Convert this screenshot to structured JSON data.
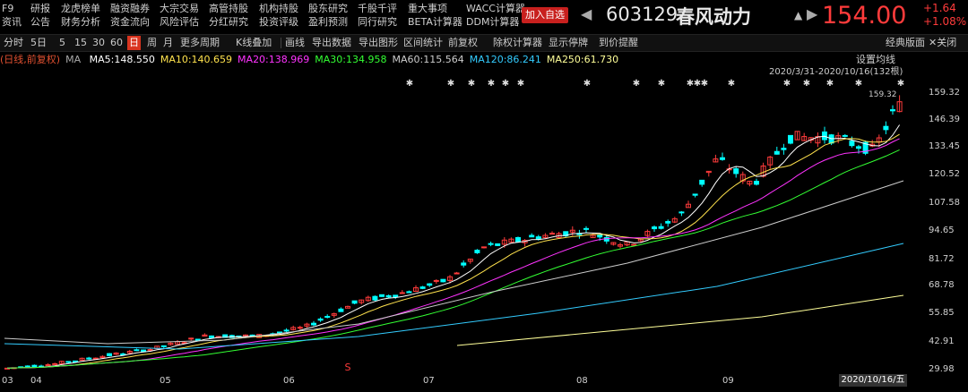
{
  "menu": {
    "col0": [
      "F9",
      "资讯"
    ],
    "col1": [
      "研报",
      "公告"
    ],
    "col2": [
      "龙虎榜单",
      "财务分析"
    ],
    "col3": [
      "融资融券",
      "资金流向"
    ],
    "col4": [
      "大宗交易",
      "风险评估"
    ],
    "col5": [
      "高管持股",
      "分红研究"
    ],
    "col6": [
      "机构持股",
      "投资评级"
    ],
    "col7": [
      "股东研究",
      "盈利预测"
    ],
    "col8": [
      "千股千评",
      "同行研究"
    ],
    "col9": [
      "重大事项",
      "BETA计算器"
    ],
    "col10": [
      "WACC计算器",
      "DDM计算器"
    ]
  },
  "header": {
    "add_button": "加入自选",
    "code": "603129",
    "name": "春风动力",
    "price": "154.00",
    "change": "+1.64",
    "change_pct": "+1.08%"
  },
  "toolbar": {
    "items": [
      "分时",
      "5日",
      "5",
      "15",
      "30",
      "60",
      "日",
      "周",
      "月",
      "更多周期",
      "K线叠加",
      "画线",
      "导出数据",
      "导出图形",
      "区间统计",
      "前复权",
      "除权计算器",
      "显示停牌",
      "到价提醒"
    ],
    "active": "日",
    "right": [
      "经典版面",
      "关闭"
    ]
  },
  "ma_row": {
    "mode": "(日线,前复权)",
    "ma_label": "MA",
    "items": [
      {
        "label": "MA5:148.550",
        "color": "#ffffff"
      },
      {
        "label": "MA10:140.659",
        "color": "#ffe24d"
      },
      {
        "label": "MA20:138.969",
        "color": "#ff33ff"
      },
      {
        "label": "MA30:134.958",
        "color": "#33ff33"
      },
      {
        "label": "MA60:115.564",
        "color": "#cccccc"
      },
      {
        "label": "MA120:86.241",
        "color": "#33ccff"
      },
      {
        "label": "MA250:61.730",
        "color": "#ffff99"
      }
    ],
    "settings": "设置均线",
    "range": "2020/3/31-2020/10/16(132根)"
  },
  "y_axis": [
    "159.32",
    "146.39",
    "133.45",
    "120.52",
    "107.58",
    "94.65",
    "81.72",
    "68.78",
    "55.85",
    "42.91",
    "29.98"
  ],
  "x_axis": [
    "03",
    "04",
    "05",
    "06",
    "07",
    "08",
    "09"
  ],
  "max_label": "159.32",
  "date_badge": "2020/10/16/五",
  "colors": {
    "up": "#ff3b3b",
    "down": "#00ffff",
    "accent": "#c8201e"
  }
}
